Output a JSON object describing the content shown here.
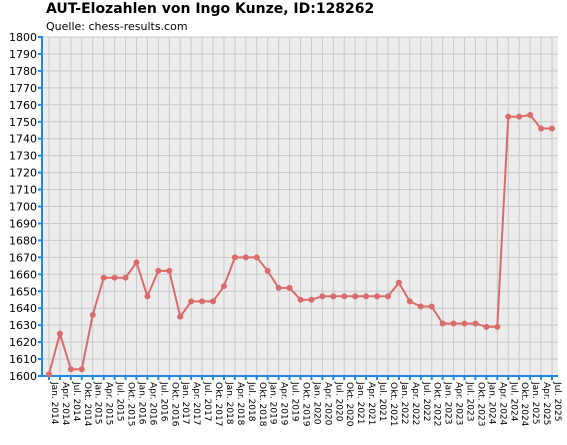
{
  "title": "AUT-Elozahlen von Ingo Kunze, ID:128262",
  "subtitle": "Quelle: chess-results.com",
  "colors": {
    "background": "#ececec",
    "grid": "#c8c8c8",
    "line": "#d96b6b",
    "axis": "#1e88e5"
  },
  "chart_data": {
    "type": "line",
    "title": "AUT-Elozahlen von Ingo Kunze, ID:128262",
    "subtitle": "Quelle: chess-results.com",
    "xlabel": "",
    "ylabel": "",
    "ylim": [
      1600,
      1800
    ],
    "ytick_step": 10,
    "grid": true,
    "categories": [
      "Jan. 2014",
      "Apr. 2014",
      "Jul. 2014",
      "Okt. 2014",
      "Jan. 2015",
      "Apr. 2015",
      "Jul. 2015",
      "Okt. 2015",
      "Jan. 2016",
      "Apr. 2016",
      "Jul. 2016",
      "Okt. 2016",
      "Jan. 2017",
      "Apr. 2017",
      "Jul. 2017",
      "Okt. 2017",
      "Jan. 2018",
      "Apr. 2018",
      "Jul. 2018",
      "Okt. 2018",
      "Jan. 2019",
      "Apr. 2019",
      "Jul. 2019",
      "Okt. 2019",
      "Jan. 2020",
      "Apr. 2020",
      "Jul. 2020",
      "Okt. 2020",
      "Jan. 2021",
      "Apr. 2021",
      "Jul. 2021",
      "Okt. 2021",
      "Jan. 2022",
      "Apr. 2022",
      "Jul. 2022",
      "Okt. 2022",
      "Jan. 2023",
      "Apr. 2023",
      "Jul. 2023",
      "Okt. 2023",
      "Jan. 2024",
      "Apr. 2024",
      "Jul. 2024",
      "Okt. 2024",
      "Jan. 2025",
      "Apr. 2025",
      "Jul. 2025"
    ],
    "series": [
      {
        "values": [
          1601,
          1625,
          1604,
          1604,
          1636,
          1658,
          1658,
          1658,
          1667,
          1647,
          1662,
          1662,
          1635,
          1644,
          1644,
          1644,
          1653,
          1670,
          1670,
          1670,
          1662,
          1652,
          1652,
          1645,
          1645,
          1647,
          1647,
          1647,
          1647,
          1647,
          1647,
          1647,
          1655,
          1644,
          1641,
          1641,
          1631,
          1631,
          1631,
          1631,
          1629,
          1629,
          1753,
          1753,
          1754,
          1746,
          1746
        ]
      }
    ]
  }
}
